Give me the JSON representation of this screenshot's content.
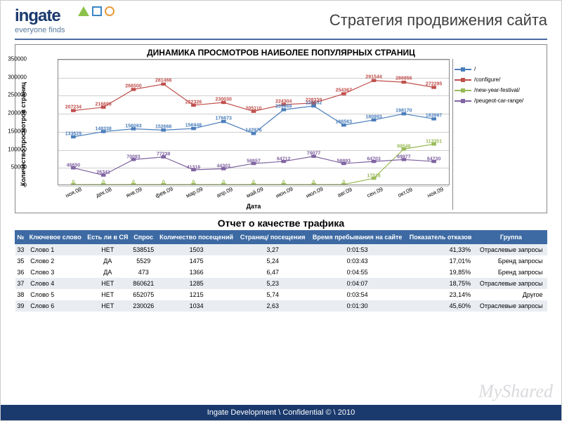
{
  "brand": {
    "name": "ingate",
    "tagline": "everyone finds"
  },
  "page_title": "Стратегия продвижения сайта",
  "chart": {
    "type": "line",
    "title": "ДИНАМИКА ПРОСМОТРОВ НАИБОЛЕЕ ПОПУЛЯРНЫХ СТРАНИЦ",
    "y_label": "Количество просмотров страниц",
    "x_label": "Дата",
    "ylim": [
      0,
      350000
    ],
    "ytick_step": 50000,
    "yticks": [
      0,
      50000,
      100000,
      150000,
      200000,
      250000,
      300000,
      350000
    ],
    "categories": [
      "ноя.08",
      "дек.08",
      "янв.09",
      "фев.09",
      "мар.09",
      "апр.09",
      "май.09",
      "июн.09",
      "июл.09",
      "авг.09",
      "сен.09",
      "окт.09",
      "ноя.09"
    ],
    "grid_color": "#cfcfcf",
    "background_color": "#ffffff",
    "series": [
      {
        "name": "/",
        "color": "#4a7ebb",
        "marker": "diamond",
        "values": [
          133629,
          148338,
          156093,
          152666,
          156948,
          176673,
          142976,
          209669,
          220152,
          166563,
          180993,
          198170,
          183997
        ]
      },
      {
        "name": "/configure/",
        "color": "#c0504d",
        "marker": "square",
        "values": [
          207234,
          216693,
          266500,
          281466,
          222326,
          230030,
          205110,
          224304,
          228339,
          254367,
          291544,
          286856,
          272295
        ]
      },
      {
        "name": "/new-year-festival/",
        "color": "#9bbb59",
        "marker": "triangle",
        "values": [
          0,
          0,
          0,
          0,
          0,
          0,
          0,
          0,
          0,
          0,
          17516,
          99548,
          113351
        ]
      },
      {
        "name": "/peugeot-car-range/",
        "color": "#8064a2",
        "marker": "cross",
        "values": [
          46650,
          26341,
          70093,
          77238,
          41318,
          44303,
          58857,
          64712,
          79077,
          58893,
          64703,
          69977,
          64730
        ]
      }
    ]
  },
  "report_title": "Отчет о качестве трафика",
  "table": {
    "header_bg": "#3d6aa3",
    "header_fg": "#ffffff",
    "band_bg": "#e9edf2",
    "columns": [
      "№",
      "Ключевое слово",
      "Есть ли в СЯ",
      "Спрос",
      "Количество посещений",
      "Страниц/ посещения",
      "Время пребывания на сайте",
      "Показатель отказов",
      "Группа"
    ],
    "rows": [
      {
        "band": true,
        "cells": [
          "33",
          "Слово 1",
          "НЕТ",
          "538515",
          "1503",
          "3,27",
          "0:01:53",
          "41,33%",
          "Отраслевые запросы"
        ]
      },
      {
        "band": false,
        "cells": [
          "35",
          "Слово 2",
          "ДА",
          "5529",
          "1475",
          "5,24",
          "0:03:43",
          "17,01%",
          "Бренд запросы"
        ]
      },
      {
        "band": false,
        "cells": [
          "36",
          "Слово 3",
          "ДА",
          "473",
          "1366",
          "6,47",
          "0:04:55",
          "19,85%",
          "Бренд запросы"
        ]
      },
      {
        "band": true,
        "cells": [
          "37",
          "Слово 4",
          "НЕТ",
          "860621",
          "1285",
          "5,23",
          "0:04:07",
          "18,75%",
          "Отраслевые запросы"
        ]
      },
      {
        "band": false,
        "cells": [
          "38",
          "Слово 5",
          "НЕТ",
          "652075",
          "1215",
          "5,74",
          "0:03:54",
          "23,14%",
          "Другое"
        ]
      },
      {
        "band": true,
        "cells": [
          "39",
          "Слово 6",
          "НЕТ",
          "230026",
          "1034",
          "2,63",
          "0:01:30",
          "45,60%",
          "Отраслевые запросы"
        ]
      }
    ]
  },
  "footer": "Ingate Development \\ Confidential © \\ 2010",
  "watermark": "MyShared"
}
